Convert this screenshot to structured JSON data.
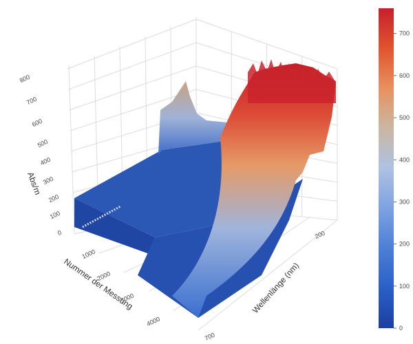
{
  "chart_data": {
    "type": "surface",
    "axes": {
      "z": {
        "title": "Abs/m",
        "ticks": [
          "0",
          "100",
          "200",
          "300",
          "400",
          "500",
          "600",
          "700",
          "800"
        ],
        "range": [
          0,
          800
        ]
      },
      "x": {
        "title": "Nummer der Messung",
        "ticks": [
          "1000",
          "2000",
          "3000",
          "4000"
        ],
        "range": [
          0,
          4500
        ]
      },
      "y": {
        "title": "Wellenlänge (nm)",
        "ticks": [
          "200",
          "700"
        ],
        "range": [
          200,
          700
        ]
      }
    },
    "grid": true,
    "colorbar": {
      "position": "right",
      "range": [
        0,
        760
      ],
      "ticks": [
        "0",
        "100",
        "200",
        "300",
        "400",
        "500",
        "600",
        "700"
      ],
      "colors": [
        "#1a3fa0",
        "#2a5fc6",
        "#4d7fd6",
        "#7ea2e0",
        "#aec1e3",
        "#c9b7a3",
        "#e8915f",
        "#e0542f",
        "#c6202b"
      ]
    },
    "surface": {
      "wavelength_nm": [
        200,
        210,
        220,
        230,
        240,
        250,
        260,
        280,
        300,
        350,
        400,
        500,
        600,
        700
      ],
      "absorbance_low_measurements": [
        230,
        190,
        90,
        60,
        55,
        55,
        52,
        50,
        48,
        46,
        45,
        44,
        43,
        43
      ],
      "absorbance_high_measurements": [
        740,
        700,
        520,
        300,
        190,
        150,
        120,
        95,
        80,
        65,
        58,
        52,
        50,
        48
      ]
    }
  }
}
